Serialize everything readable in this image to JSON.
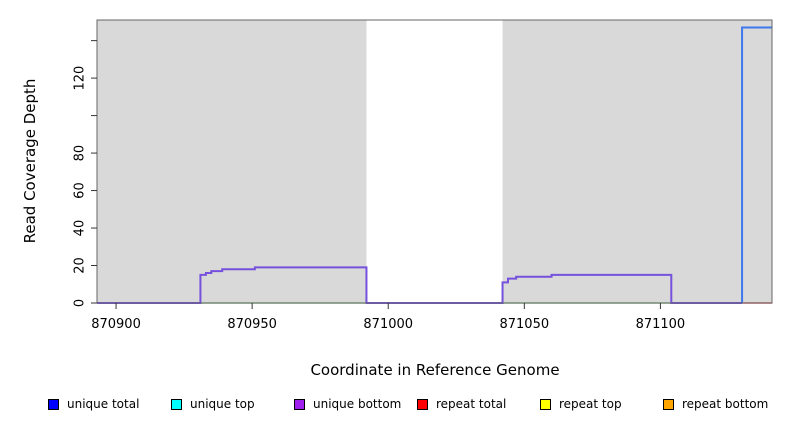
{
  "figure": {
    "x_axis_title": "Coordinate in Reference Genome",
    "y_axis_title": "Read Coverage Depth"
  },
  "legend": {
    "items": [
      {
        "label": "unique total",
        "color": "#0000ff"
      },
      {
        "label": "unique top",
        "color": "#00ffff"
      },
      {
        "label": "unique bottom",
        "color": "#a020f0"
      },
      {
        "label": "repeat total",
        "color": "#ff0000"
      },
      {
        "label": "repeat top",
        "color": "#ffff00"
      },
      {
        "label": "repeat bottom",
        "color": "#ffa500"
      }
    ]
  },
  "chart_data": {
    "type": "line",
    "title": "",
    "xlabel": "Coordinate in Reference Genome",
    "ylabel": "Read Coverage Depth",
    "xlim": [
      870893,
      871141
    ],
    "ylim": [
      0,
      151
    ],
    "grid": false,
    "plot_background": "#d9d9d9",
    "frame_color": "#666666",
    "tick_color": "#333333",
    "white_masked_region": {
      "from": 870992,
      "to": 871042,
      "color": "#ffffff"
    },
    "x_ticks": [
      {
        "v": 870900,
        "label": "870900"
      },
      {
        "v": 870950,
        "label": "870950"
      },
      {
        "v": 871000,
        "label": "871000"
      },
      {
        "v": 871050,
        "label": "871050"
      },
      {
        "v": 871100,
        "label": "871100"
      }
    ],
    "y_ticks": [
      {
        "v": 0,
        "label": "0"
      },
      {
        "v": 20,
        "label": "20"
      },
      {
        "v": 40,
        "label": "40"
      },
      {
        "v": 60,
        "label": "60"
      },
      {
        "v": 80,
        "label": "80"
      },
      {
        "v": 100,
        "label": ""
      },
      {
        "v": 120,
        "label": "120"
      },
      {
        "v": 140,
        "label": ""
      }
    ],
    "series": [
      {
        "name": "unique total",
        "color": "#0000ff",
        "points": [
          [
            870893,
            0
          ],
          [
            870931,
            0
          ],
          [
            870931,
            15
          ],
          [
            870933,
            15
          ],
          [
            870933,
            16
          ],
          [
            870935,
            16
          ],
          [
            870935,
            17
          ],
          [
            870939,
            17
          ],
          [
            870939,
            18
          ],
          [
            870951,
            18
          ],
          [
            870951,
            19
          ],
          [
            870992,
            19
          ],
          [
            870992,
            0
          ],
          [
            871042,
            0
          ],
          [
            871042,
            11
          ],
          [
            871044,
            11
          ],
          [
            871044,
            13
          ],
          [
            871047,
            13
          ],
          [
            871047,
            14
          ],
          [
            871060,
            14
          ],
          [
            871060,
            15
          ],
          [
            871104,
            15
          ],
          [
            871104,
            0
          ],
          [
            871130,
            0
          ],
          [
            871130,
            147
          ],
          [
            871141,
            147
          ]
        ]
      },
      {
        "name": "unique top",
        "color": "#00ffff",
        "points": [
          [
            870893,
            0
          ],
          [
            871130,
            0
          ],
          [
            871130,
            147
          ],
          [
            871141,
            147
          ]
        ]
      },
      {
        "name": "unique bottom",
        "color": "#a020f0",
        "points": [
          [
            870893,
            0
          ],
          [
            870931,
            0
          ],
          [
            870931,
            15
          ],
          [
            870933,
            15
          ],
          [
            870933,
            16
          ],
          [
            870935,
            16
          ],
          [
            870935,
            17
          ],
          [
            870939,
            17
          ],
          [
            870939,
            18
          ],
          [
            870951,
            18
          ],
          [
            870951,
            19
          ],
          [
            870992,
            19
          ],
          [
            870992,
            0
          ],
          [
            871042,
            0
          ],
          [
            871042,
            11
          ],
          [
            871044,
            11
          ],
          [
            871044,
            13
          ],
          [
            871047,
            13
          ],
          [
            871047,
            14
          ],
          [
            871060,
            14
          ],
          [
            871060,
            15
          ],
          [
            871104,
            15
          ],
          [
            871104,
            0
          ],
          [
            871141,
            0
          ]
        ]
      },
      {
        "name": "repeat total",
        "color": "#ff0000",
        "points": [
          [
            870893,
            0
          ],
          [
            871141,
            0
          ]
        ]
      },
      {
        "name": "repeat top",
        "color": "#ffff00",
        "points": [
          [
            870893,
            0
          ],
          [
            871141,
            0
          ]
        ]
      },
      {
        "name": "repeat bottom",
        "color": "#ffa500",
        "points": [
          [
            870893,
            0
          ],
          [
            871141,
            0
          ]
        ]
      }
    ],
    "rendered_lines": [
      {
        "name": "baseline-overlap-green",
        "color": "#8fd08f",
        "width": 1.5,
        "points": [
          [
            870893,
            0
          ],
          [
            871130,
            0
          ]
        ]
      },
      {
        "name": "repeat-baseline-right-red",
        "color": "#e05a64",
        "width": 1.5,
        "points": [
          [
            871130,
            0
          ],
          [
            871141,
            0
          ]
        ]
      },
      {
        "name": "unique-bottom-step-purple",
        "color": "#7551de",
        "width": 2,
        "points": [
          [
            870893,
            0
          ],
          [
            870931,
            0
          ],
          [
            870931,
            15
          ],
          [
            870933,
            15
          ],
          [
            870933,
            16
          ],
          [
            870935,
            16
          ],
          [
            870935,
            17
          ],
          [
            870939,
            17
          ],
          [
            870939,
            18
          ],
          [
            870951,
            18
          ],
          [
            870951,
            19
          ],
          [
            870992,
            19
          ],
          [
            870992,
            0
          ],
          [
            871042,
            0
          ],
          [
            871042,
            11
          ],
          [
            871044,
            11
          ],
          [
            871044,
            13
          ],
          [
            871047,
            13
          ],
          [
            871047,
            14
          ],
          [
            871060,
            14
          ],
          [
            871060,
            15
          ],
          [
            871104,
            15
          ],
          [
            871104,
            0
          ],
          [
            871130,
            0
          ]
        ]
      },
      {
        "name": "unique-total-jump-blue",
        "color": "#3d78ec",
        "width": 2,
        "points": [
          [
            871130,
            0
          ],
          [
            871130,
            147
          ],
          [
            871141,
            147
          ]
        ]
      }
    ]
  }
}
